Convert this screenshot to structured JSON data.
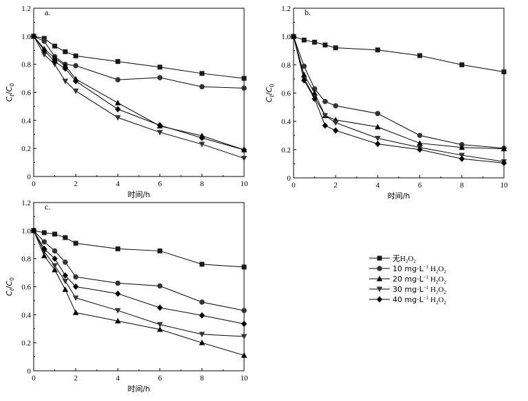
{
  "chart_data": [
    {
      "type": "line",
      "panel_label": "a.",
      "xlabel": "时间/h",
      "ylabel": "Ct/C0",
      "xlim": [
        0,
        10
      ],
      "ylim": [
        0,
        1.2
      ],
      "xticks": [
        0,
        2,
        4,
        6,
        8,
        10
      ],
      "yticks": [
        0,
        0.2,
        0.4,
        0.6,
        0.8,
        1.0,
        1.2
      ],
      "ytick_labels": [
        "0",
        "0.2",
        "0.4",
        "0.6",
        "0.8",
        "1.0",
        "1.2"
      ],
      "series": [
        {
          "name": "无H2O2",
          "marker": "square",
          "x": [
            0,
            0.5,
            1,
            1.5,
            2,
            4,
            6,
            8,
            10
          ],
          "y": [
            1.0,
            0.985,
            0.93,
            0.89,
            0.86,
            0.82,
            0.78,
            0.735,
            0.7
          ]
        },
        {
          "name": "10 mg·L-1 H2O2",
          "marker": "circle",
          "x": [
            0,
            0.5,
            1,
            1.5,
            2,
            4,
            6,
            8,
            10
          ],
          "y": [
            1.0,
            0.965,
            0.855,
            0.8,
            0.79,
            0.69,
            0.705,
            0.64,
            0.63
          ]
        },
        {
          "name": "20 mg·L-1 H2O2",
          "marker": "triangle-up",
          "x": [
            0,
            0.5,
            1,
            1.5,
            2,
            4,
            6,
            8,
            10
          ],
          "y": [
            1.0,
            0.91,
            0.845,
            0.79,
            0.695,
            0.525,
            0.36,
            0.29,
            0.19
          ]
        },
        {
          "name": "30 mg·L-1 H2O2",
          "marker": "triangle-down",
          "x": [
            0,
            0.5,
            1,
            1.5,
            2,
            4,
            6,
            8,
            10
          ],
          "y": [
            1.0,
            0.87,
            0.8,
            0.68,
            0.61,
            0.42,
            0.315,
            0.23,
            0.13
          ]
        },
        {
          "name": "40 mg·L-1 H2O2",
          "marker": "diamond",
          "x": [
            0,
            0.5,
            1,
            1.5,
            2,
            4,
            6,
            8,
            10
          ],
          "y": [
            1.0,
            0.9,
            0.82,
            0.77,
            0.68,
            0.48,
            0.365,
            0.275,
            0.19
          ]
        }
      ]
    },
    {
      "type": "line",
      "panel_label": "b.",
      "xlabel": "时间/h",
      "ylabel": "Ct/C0",
      "xlim": [
        0,
        10
      ],
      "ylim": [
        0,
        1.2
      ],
      "xticks": [
        0,
        2,
        4,
        6,
        8,
        10
      ],
      "yticks": [
        0,
        0.2,
        0.4,
        0.6,
        0.8,
        1.0,
        1.2
      ],
      "ytick_labels": [
        "0",
        "0.2",
        "0.4",
        "0.6",
        "0.8",
        "1.0",
        "1.2"
      ],
      "series": [
        {
          "name": "无H2O2",
          "marker": "square",
          "x": [
            0,
            0.5,
            1,
            1.5,
            2,
            4,
            6,
            8,
            10
          ],
          "y": [
            1.0,
            0.975,
            0.96,
            0.94,
            0.92,
            0.905,
            0.865,
            0.8,
            0.75
          ]
        },
        {
          "name": "10 mg·L-1 H2O2",
          "marker": "circle",
          "x": [
            0,
            0.5,
            1,
            1.5,
            2,
            4,
            6,
            8,
            10
          ],
          "y": [
            1.0,
            0.79,
            0.63,
            0.54,
            0.51,
            0.455,
            0.3,
            0.235,
            0.21
          ]
        },
        {
          "name": "20 mg·L-1 H2O2",
          "marker": "triangle-up",
          "x": [
            0,
            0.5,
            1,
            1.5,
            2,
            4,
            6,
            8,
            10
          ],
          "y": [
            1.0,
            0.73,
            0.6,
            0.44,
            0.41,
            0.36,
            0.245,
            0.215,
            0.205
          ]
        },
        {
          "name": "30 mg·L-1 H2O2",
          "marker": "triangle-down",
          "x": [
            0,
            0.5,
            1,
            1.5,
            2,
            4,
            6,
            8,
            10
          ],
          "y": [
            1.0,
            0.7,
            0.57,
            0.44,
            0.39,
            0.28,
            0.215,
            0.16,
            0.115
          ]
        },
        {
          "name": "40 mg·L-1 H2O2",
          "marker": "diamond",
          "x": [
            0,
            0.5,
            1,
            1.5,
            2,
            4,
            6,
            8,
            10
          ],
          "y": [
            1.0,
            0.69,
            0.56,
            0.37,
            0.335,
            0.24,
            0.2,
            0.135,
            0.105
          ]
        }
      ]
    },
    {
      "type": "line",
      "panel_label": "c.",
      "xlabel": "时间/h",
      "ylabel": "Ct/C0",
      "xlim": [
        0,
        10
      ],
      "ylim": [
        0,
        1.2
      ],
      "xticks": [
        0,
        2,
        4,
        6,
        8,
        10
      ],
      "yticks": [
        0,
        0.2,
        0.4,
        0.6,
        0.8,
        1.0,
        1.2
      ],
      "ytick_labels": [
        "0",
        "0.2",
        "0.4",
        "0.6",
        "0.8",
        "1.0",
        "1.2"
      ],
      "series": [
        {
          "name": "无H2O2",
          "marker": "square",
          "x": [
            0,
            0.5,
            1,
            1.5,
            2,
            4,
            6,
            8,
            10
          ],
          "y": [
            1.0,
            0.985,
            0.975,
            0.95,
            0.91,
            0.87,
            0.855,
            0.76,
            0.74
          ]
        },
        {
          "name": "10 mg·L-1 H2O2",
          "marker": "circle",
          "x": [
            0,
            0.5,
            1,
            1.5,
            2,
            4,
            6,
            8,
            10
          ],
          "y": [
            1.0,
            0.92,
            0.855,
            0.775,
            0.67,
            0.625,
            0.605,
            0.49,
            0.43
          ]
        },
        {
          "name": "20 mg·L-1 H2O2",
          "marker": "triangle-up",
          "x": [
            0,
            0.5,
            1,
            1.5,
            2,
            4,
            6,
            8,
            10
          ],
          "y": [
            1.0,
            0.82,
            0.72,
            0.58,
            0.415,
            0.355,
            0.295,
            0.2,
            0.11
          ]
        },
        {
          "name": "30 mg·L-1 H2O2",
          "marker": "triangle-down",
          "x": [
            0,
            0.5,
            1,
            1.5,
            2,
            4,
            6,
            8,
            10
          ],
          "y": [
            1.0,
            0.85,
            0.75,
            0.64,
            0.52,
            0.43,
            0.33,
            0.26,
            0.245
          ]
        },
        {
          "name": "40 mg·L-1 H2O2",
          "marker": "diamond",
          "x": [
            0,
            0.5,
            1,
            1.5,
            2,
            4,
            6,
            8,
            10
          ],
          "y": [
            1.0,
            0.87,
            0.8,
            0.68,
            0.6,
            0.55,
            0.45,
            0.395,
            0.335
          ]
        }
      ]
    }
  ],
  "legend": [
    {
      "marker": "square",
      "text": "无",
      "species": "H",
      "sub1": "2",
      "mid": "O",
      "sub2": "2",
      "unit": "",
      "unit_sup": "",
      "unit_tail": ""
    },
    {
      "marker": "circle",
      "text": "10 mg·L",
      "unit_sup": "−1",
      "species": " H",
      "sub1": "2",
      "mid": "O",
      "sub2": "2",
      "unit": "",
      "unit_tail": ""
    },
    {
      "marker": "triangle-up",
      "text": "20 mg·L",
      "unit_sup": "−1",
      "species": " H",
      "sub1": "2",
      "mid": "O",
      "sub2": "2",
      "unit": "",
      "unit_tail": ""
    },
    {
      "marker": "triangle-down",
      "text": "30 mg·L",
      "unit_sup": "−1",
      "species": " H",
      "sub1": "2",
      "mid": "O",
      "sub2": "2",
      "unit": "",
      "unit_tail": ""
    },
    {
      "marker": "diamond",
      "text": "40 mg·L",
      "unit_sup": "−1",
      "species": " H",
      "sub1": "2",
      "mid": "O",
      "sub2": "2",
      "unit": "",
      "unit_tail": ""
    }
  ],
  "ylabel_parts": {
    "main": "C",
    "sub_main": "t",
    "slash": "/",
    "den": "C",
    "sub_den": "0"
  }
}
